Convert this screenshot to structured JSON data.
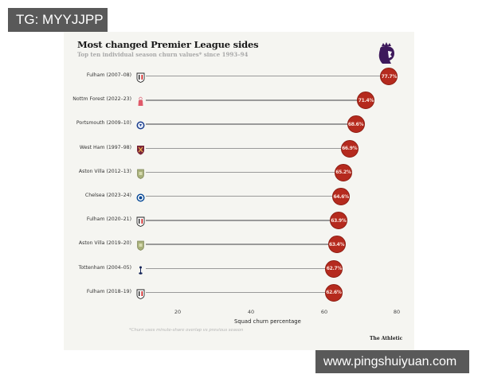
{
  "watermarks": {
    "top_left": "TG: MYYJJPP",
    "bottom_right": "www.pingshuiyuan.com"
  },
  "chart_data": {
    "type": "bar",
    "subtype": "lollipop-horizontal",
    "title": "Most changed Premier League sides",
    "subtitle": "Top ten individual season churn values* since 1993–94",
    "xlabel": "Squad churn percentage",
    "ylabel": "",
    "xlim": [
      0,
      82
    ],
    "xticks": [
      20,
      40,
      60,
      80
    ],
    "grid": false,
    "legend": null,
    "categories": [
      "Fulham (2007–08)",
      "Nottm Forest (2022–23)",
      "Portsmouth (2009–10)",
      "West Ham (1997–98)",
      "Aston Villa (2012–13)",
      "Chelsea (2023–24)",
      "Fulham (2020–21)",
      "Aston Villa (2019–20)",
      "Tottenham (2004–05)",
      "Fulham (2018–19)"
    ],
    "values": [
      77.7,
      71.4,
      68.6,
      66.9,
      65.2,
      64.6,
      63.9,
      63.4,
      62.7,
      62.6
    ],
    "value_labels": [
      "77.7%",
      "71.4%",
      "68.6%",
      "66.9%",
      "65.2%",
      "64.6%",
      "63.9%",
      "63.4%",
      "62.7%",
      "62.6%"
    ],
    "footnote": "*Churn uses minute-share overlap vs previous season",
    "source": "The Athletic",
    "colors": {
      "dot": "#b52a1e",
      "stem": "#9a9a9a",
      "background": "#f5f5f1"
    }
  },
  "rows": [
    {
      "label": "Fulham (2007–08)",
      "value": 77.7,
      "value_label": "77.7%",
      "crest": "fulham-crest-icon"
    },
    {
      "label": "Nottm Forest (2022–23)",
      "value": 71.4,
      "value_label": "71.4%",
      "crest": "nottm-forest-crest-icon"
    },
    {
      "label": "Portsmouth (2009–10)",
      "value": 68.6,
      "value_label": "68.6%",
      "crest": "portsmouth-crest-icon"
    },
    {
      "label": "West Ham (1997–98)",
      "value": 66.9,
      "value_label": "66.9%",
      "crest": "west-ham-crest-icon"
    },
    {
      "label": "Aston Villa (2012–13)",
      "value": 65.2,
      "value_label": "65.2%",
      "crest": "aston-villa-crest-icon"
    },
    {
      "label": "Chelsea (2023–24)",
      "value": 64.6,
      "value_label": "64.6%",
      "crest": "chelsea-crest-icon"
    },
    {
      "label": "Fulham (2020–21)",
      "value": 63.9,
      "value_label": "63.9%",
      "crest": "fulham-crest-icon"
    },
    {
      "label": "Aston Villa (2019–20)",
      "value": 63.4,
      "value_label": "63.4%",
      "crest": "aston-villa-crest-icon"
    },
    {
      "label": "Tottenham (2004–05)",
      "value": 62.7,
      "value_label": "62.7%",
      "crest": "tottenham-crest-icon"
    },
    {
      "label": "Fulham (2018–19)",
      "value": 62.6,
      "value_label": "62.6%",
      "crest": "fulham-crest-icon"
    }
  ],
  "axis": {
    "ticks": [
      "20",
      "40",
      "60",
      "80"
    ],
    "label": "Squad churn percentage"
  },
  "header": {
    "title": "Most changed Premier League sides",
    "subtitle": "Top ten individual season churn values* since 1993–94",
    "logo": "premier-league-lion-icon"
  },
  "footer": {
    "footnote": "*Churn uses minute-share overlap vs previous season",
    "brand": "The Athletic"
  }
}
